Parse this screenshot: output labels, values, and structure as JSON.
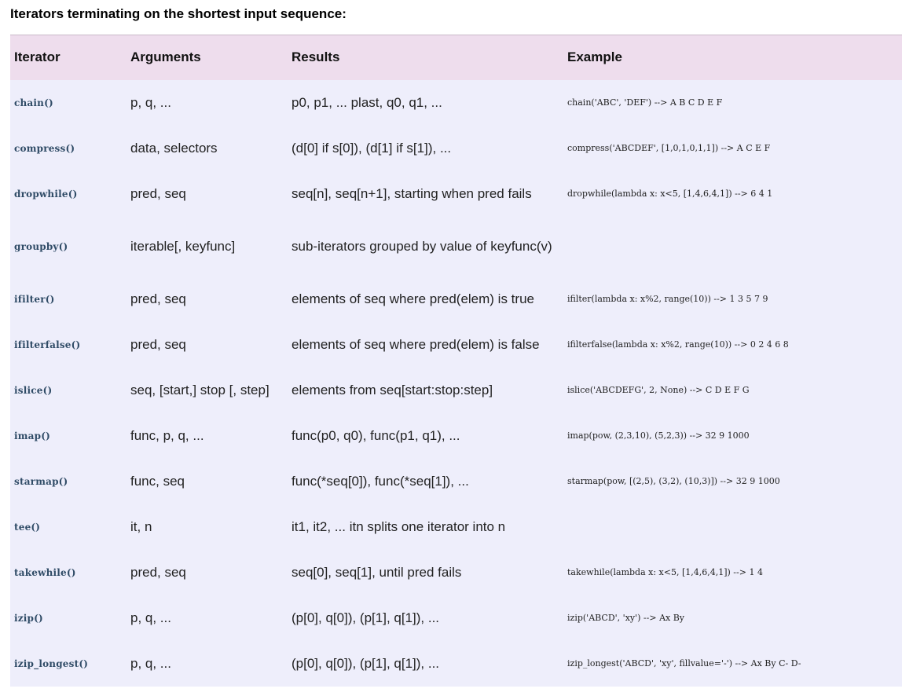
{
  "heading": "Iterators terminating on the shortest input sequence:",
  "table": {
    "headers": {
      "iterator": "Iterator",
      "arguments": "Arguments",
      "results": "Results",
      "example": "Example"
    },
    "rows": [
      {
        "iterator": "chain()",
        "arguments": "p, q, ...",
        "results": "p0, p1, ... plast, q0, q1, ...",
        "example": "chain('ABC', 'DEF') --> A B C D E F"
      },
      {
        "iterator": "compress()",
        "arguments": "data, selectors",
        "results": "(d[0] if s[0]), (d[1] if s[1]), ...",
        "example": "compress('ABCDEF', [1,0,1,0,1,1]) --> A C E F"
      },
      {
        "iterator": "dropwhile()",
        "arguments": "pred, seq",
        "results": "seq[n], seq[n+1], starting when pred fails",
        "example": "dropwhile(lambda x: x<5, [1,4,6,4,1]) --> 6 4 1"
      },
      {
        "iterator": "groupby()",
        "arguments": "iterable[, keyfunc]",
        "results": "sub-iterators grouped by value of keyfunc(v)",
        "example": ""
      },
      {
        "iterator": "ifilter()",
        "arguments": "pred, seq",
        "results": "elements of seq where pred(elem) is true",
        "example": "ifilter(lambda x: x%2, range(10)) --> 1 3 5 7 9"
      },
      {
        "iterator": "ifilterfalse()",
        "arguments": "pred, seq",
        "results": "elements of seq where pred(elem) is false",
        "example": "ifilterfalse(lambda x: x%2, range(10)) --> 0 2 4 6 8"
      },
      {
        "iterator": "islice()",
        "arguments": "seq, [start,] stop [, step]",
        "results": "elements from seq[start:stop:step]",
        "example": "islice('ABCDEFG', 2, None) --> C D E F G"
      },
      {
        "iterator": "imap()",
        "arguments": "func, p, q, ...",
        "results": "func(p0, q0), func(p1, q1), ...",
        "example": "imap(pow, (2,3,10), (5,2,3)) --> 32 9 1000"
      },
      {
        "iterator": "starmap()",
        "arguments": "func, seq",
        "results": "func(*seq[0]), func(*seq[1]), ...",
        "example": "starmap(pow, [(2,5), (3,2), (10,3)]) --> 32 9 1000"
      },
      {
        "iterator": "tee()",
        "arguments": "it, n",
        "results": "it1, it2, ... itn splits one iterator into n",
        "example": ""
      },
      {
        "iterator": "takewhile()",
        "arguments": "pred, seq",
        "results": "seq[0], seq[1], until pred fails",
        "example": "takewhile(lambda x: x<5, [1,4,6,4,1]) --> 1 4"
      },
      {
        "iterator": "izip()",
        "arguments": "p, q, ...",
        "results": "(p[0], q[0]), (p[1], q[1]), ...",
        "example": "izip('ABCD', 'xy') --> Ax By"
      },
      {
        "iterator": "izip_longest()",
        "arguments": "p, q, ...",
        "results": "(p[0], q[0]), (p[1], q[1]), ...",
        "example": "izip_longest('ABCD', 'xy', fillvalue='-') --> Ax By C- D-"
      }
    ]
  }
}
